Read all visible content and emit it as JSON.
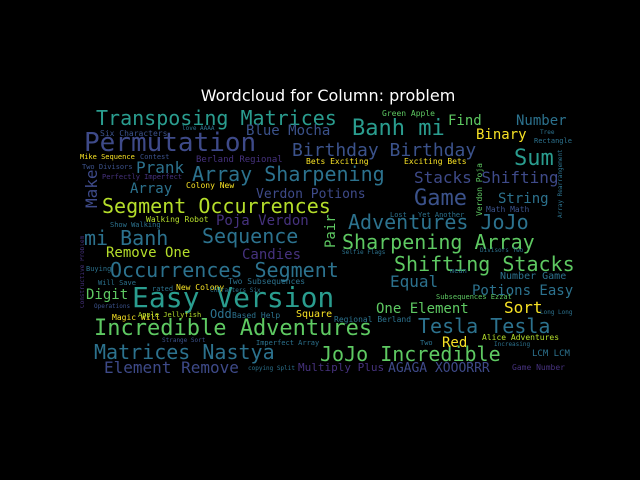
{
  "title": "Wordcloud for Column: problem",
  "palette": {
    "background": "#000000",
    "teal": "#2a9d8f",
    "green": "#5ec962",
    "yellow": "#f7e225",
    "purple": "#46327e",
    "blue": "#3b528b",
    "lime": "#b5de2b"
  },
  "words": [
    {
      "text": "Transposing Matrices",
      "color": "#2a9d8f"
    },
    {
      "text": "Permutation",
      "color": "#3e4a89"
    },
    {
      "text": "Banh mi",
      "color": "#2a9d8f"
    },
    {
      "text": "Birthday Birthday",
      "color": "#3b528b"
    },
    {
      "text": "Sum",
      "color": "#2a9d8f"
    },
    {
      "text": "Array Sharpening",
      "color": "#2c728e"
    },
    {
      "text": "Segment Occurrences",
      "color": "#b5de2b"
    },
    {
      "text": "Game",
      "color": "#3b528b"
    },
    {
      "text": "Adventures JoJo",
      "color": "#2c728e"
    },
    {
      "text": "mi Banh",
      "color": "#2c728e"
    },
    {
      "text": "Sequence",
      "color": "#2c728e"
    },
    {
      "text": "Sharpening Array",
      "color": "#5ec962"
    },
    {
      "text": "Occurrences Segment",
      "color": "#2c728e"
    },
    {
      "text": "Shifting Stacks",
      "color": "#5ec962"
    },
    {
      "text": "Easy Version",
      "color": "#2a9d8f"
    },
    {
      "text": "Incredible Adventures",
      "color": "#5ec962"
    },
    {
      "text": "Tesla Tesla",
      "color": "#2c728e"
    },
    {
      "text": "Matrices Nastya",
      "color": "#2c728e"
    },
    {
      "text": "JoJo Incredible",
      "color": "#5ec962"
    },
    {
      "text": "Element Remove",
      "color": "#3e4a89"
    },
    {
      "text": "Stacks Shifting",
      "color": "#3e4a89"
    },
    {
      "text": "Blue Mocha",
      "color": "#3b528b"
    },
    {
      "text": "Prank",
      "color": "#2c728e"
    },
    {
      "text": "Array",
      "color": "#2c728e"
    },
    {
      "text": "Make",
      "color": "#3e4a89"
    },
    {
      "text": "Binary",
      "color": "#f7e225"
    },
    {
      "text": "Find",
      "color": "#5ec962"
    },
    {
      "text": "Number",
      "color": "#2c728e"
    },
    {
      "text": "Verdon Potions",
      "color": "#3e4a89"
    },
    {
      "text": "Poja Verdon",
      "color": "#46327e"
    },
    {
      "text": "String",
      "color": "#2c728e"
    },
    {
      "text": "Remove One",
      "color": "#b5de2b"
    },
    {
      "text": "Candies",
      "color": "#46327e"
    },
    {
      "text": "Pair",
      "color": "#5ec962"
    },
    {
      "text": "Equal",
      "color": "#2c728e"
    },
    {
      "text": "Potions Easy",
      "color": "#2c728e"
    },
    {
      "text": "Digit",
      "color": "#5ec962"
    },
    {
      "text": "One Element",
      "color": "#5ec962"
    },
    {
      "text": "Sort",
      "color": "#f7e225"
    },
    {
      "text": "Red",
      "color": "#f7e225"
    },
    {
      "text": "AGAGA XOOORRR",
      "color": "#3e4a89"
    },
    {
      "text": "Odd",
      "color": "#2c728e"
    },
    {
      "text": "Square",
      "color": "#f7e225"
    },
    {
      "text": "Multiply Plus",
      "color": "#46327e"
    },
    {
      "text": "Six Characters",
      "color": "#3b528b"
    },
    {
      "text": "Mike Sequence",
      "color": "#f7e225"
    },
    {
      "text": "Berland Regional",
      "color": "#46327e"
    },
    {
      "text": "Colony New",
      "color": "#f7e225"
    },
    {
      "text": "New Colony",
      "color": "#f7e225"
    },
    {
      "text": "Walking Robot",
      "color": "#b5de2b"
    },
    {
      "text": "Green Apple",
      "color": "#5ec962"
    },
    {
      "text": "Bets Exciting",
      "color": "#f7e225"
    },
    {
      "text": "Exciting Bets",
      "color": "#f7e225"
    },
    {
      "text": "Two Subsequences",
      "color": "#2c728e"
    },
    {
      "text": "Regional Berland",
      "color": "#2c728e"
    },
    {
      "text": "Alice Adventures",
      "color": "#b5de2b"
    },
    {
      "text": "LCM LCM",
      "color": "#2c728e"
    },
    {
      "text": "Magic Will",
      "color": "#f7e225"
    },
    {
      "text": "Number Game",
      "color": "#2c728e"
    },
    {
      "text": "Subsequences Ezzat",
      "color": "#5ec962"
    },
    {
      "text": "Two Divisors",
      "color": "#3b528b"
    },
    {
      "text": "Contest",
      "color": "#3b528b"
    },
    {
      "text": "Perfectly Imperfect",
      "color": "#46327e"
    },
    {
      "text": "Math Math",
      "color": "#3b528b"
    },
    {
      "text": "Apple Jellyfish",
      "color": "#b5de2b"
    },
    {
      "text": "Based Help",
      "color": "#2c728e"
    },
    {
      "text": "Game Number",
      "color": "#46327e"
    },
    {
      "text": "Verdon Poja",
      "color": "#5ec962"
    },
    {
      "text": "Constructive Problem",
      "color": "#46327e"
    },
    {
      "text": "Will Save",
      "color": "#2c728e"
    },
    {
      "text": "Buying",
      "color": "#2c728e"
    },
    {
      "text": "Operations",
      "color": "#3b528b"
    },
    {
      "text": "rated",
      "color": "#2c728e"
    },
    {
      "text": "Characters Six",
      "color": "#2c728e"
    },
    {
      "text": "Increasing",
      "color": "#2c728e"
    },
    {
      "text": "Rectangle",
      "color": "#2c728e"
    },
    {
      "text": "Tree",
      "color": "#2c728e"
    },
    {
      "text": "Show Walking",
      "color": "#2c728e"
    },
    {
      "text": "Lost",
      "color": "#2c728e"
    },
    {
      "text": "Selfie Flags",
      "color": "#2c728e"
    },
    {
      "text": "Array Rearrangement",
      "color": "#2c728e"
    },
    {
      "text": "Imperfect Array",
      "color": "#2c728e"
    },
    {
      "text": "copying Split",
      "color": "#2c728e"
    },
    {
      "text": "love AAAA",
      "color": "#2c728e"
    },
    {
      "text": "Two",
      "color": "#2c728e"
    },
    {
      "text": "mean",
      "color": "#2c728e"
    },
    {
      "text": "Yet Another",
      "color": "#2c728e"
    },
    {
      "text": "Divisors Two",
      "color": "#2c728e"
    },
    {
      "text": "Long Long",
      "color": "#2c728e"
    },
    {
      "text": "Strange Sort",
      "color": "#3b528b"
    }
  ]
}
